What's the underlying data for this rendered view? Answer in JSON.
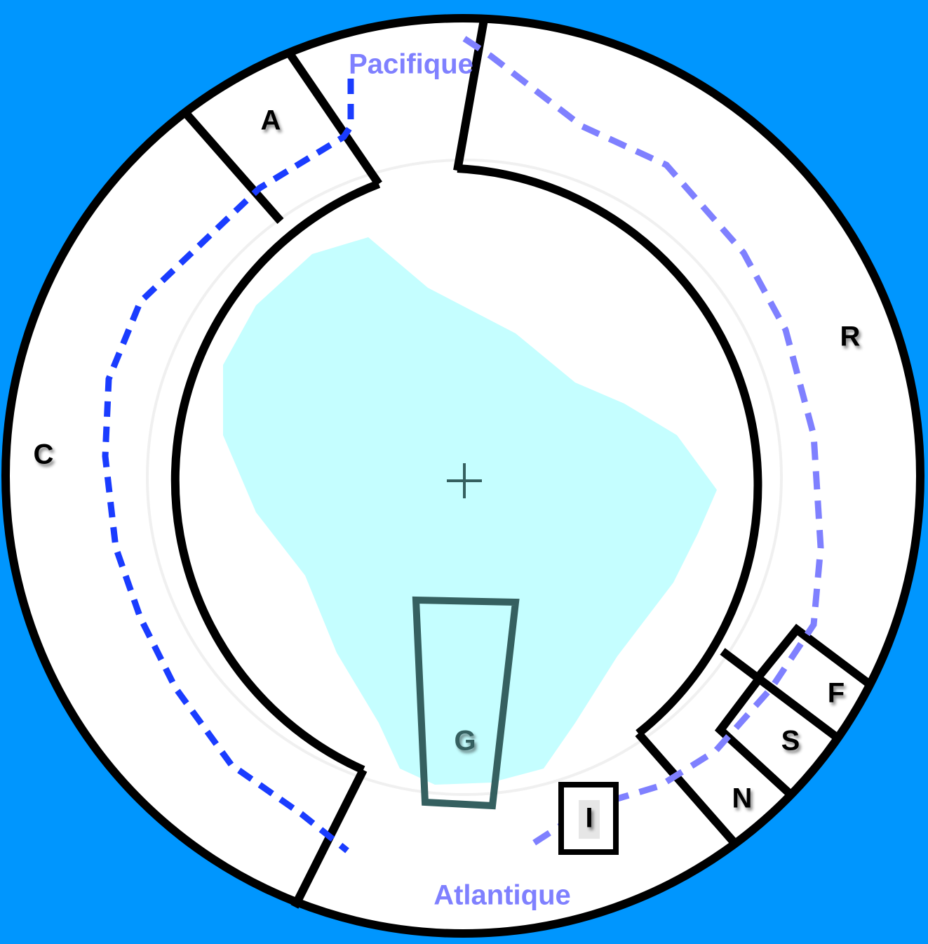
{
  "oceans": {
    "pacific": "Pacifique",
    "atlantic": "Atlantique"
  },
  "zones": {
    "a": "A",
    "c": "C",
    "r": "R",
    "f": "F",
    "s": "S",
    "n": "N",
    "g": "G",
    "i": "I"
  }
}
